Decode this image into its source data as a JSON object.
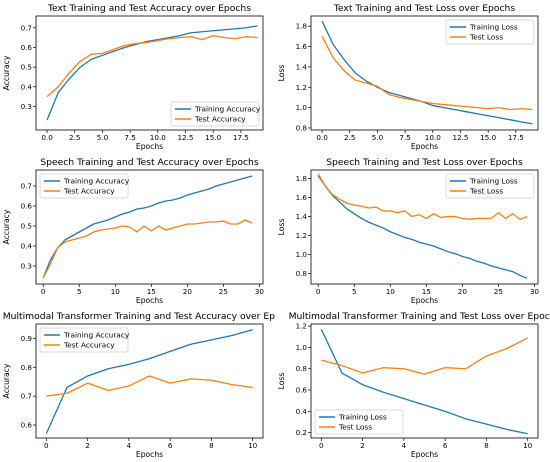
{
  "colors": {
    "training": "#1f77b4",
    "test": "#ff7f0e"
  },
  "chart_data": [
    {
      "type": "line",
      "title": "Text Training and Test Accuracy over Epochs",
      "xlabel": "Epochs",
      "ylabel": "Accuracy",
      "xlim": [
        -1,
        19.5
      ],
      "ylim": [
        0.18,
        0.76
      ],
      "xticks": [
        0.0,
        2.5,
        5.0,
        7.5,
        10.0,
        12.5,
        15.0,
        17.5
      ],
      "xtick_labels": [
        "0.0",
        "2.5",
        "5.0",
        "7.5",
        "10.0",
        "12.5",
        "15.0",
        "17.5"
      ],
      "yticks": [
        0.3,
        0.4,
        0.5,
        0.6,
        0.7
      ],
      "ytick_labels": [
        "0.3",
        "0.4",
        "0.5",
        "0.6",
        "0.7"
      ],
      "legend_loc": "lower-right",
      "x": [
        0,
        1,
        2,
        3,
        4,
        5,
        6,
        7,
        8,
        9,
        10,
        11,
        12,
        13,
        14,
        15,
        16,
        17,
        18,
        19
      ],
      "series": [
        {
          "name": "Training Accuracy",
          "color_key": "training",
          "values": [
            0.23,
            0.37,
            0.44,
            0.5,
            0.54,
            0.56,
            0.58,
            0.6,
            0.615,
            0.63,
            0.64,
            0.65,
            0.66,
            0.675,
            0.68,
            0.685,
            0.69,
            0.695,
            0.7,
            0.71
          ]
        },
        {
          "name": "Test Accuracy",
          "color_key": "test",
          "values": [
            0.35,
            0.4,
            0.47,
            0.53,
            0.565,
            0.57,
            0.59,
            0.61,
            0.62,
            0.625,
            0.635,
            0.645,
            0.65,
            0.655,
            0.64,
            0.66,
            0.65,
            0.645,
            0.655,
            0.65
          ]
        }
      ]
    },
    {
      "type": "line",
      "title": "Text Training and Test Loss over Epochs",
      "xlabel": "Epochs",
      "ylabel": "Loss",
      "xlim": [
        -1,
        19.5
      ],
      "ylim": [
        0.78,
        1.9
      ],
      "xticks": [
        0.0,
        2.5,
        5.0,
        7.5,
        10.0,
        12.5,
        15.0,
        17.5
      ],
      "xtick_labels": [
        "0.0",
        "2.5",
        "5.0",
        "7.5",
        "10.0",
        "12.5",
        "15.0",
        "17.5"
      ],
      "yticks": [
        0.8,
        1.0,
        1.2,
        1.4,
        1.6,
        1.8
      ],
      "ytick_labels": [
        "0.8",
        "1.0",
        "1.2",
        "1.4",
        "1.6",
        "1.8"
      ],
      "legend_loc": "upper-right",
      "x": [
        0,
        1,
        2,
        3,
        4,
        5,
        6,
        7,
        8,
        9,
        10,
        11,
        12,
        13,
        14,
        15,
        16,
        17,
        18,
        19
      ],
      "series": [
        {
          "name": "Training Loss",
          "color_key": "training",
          "values": [
            1.85,
            1.62,
            1.47,
            1.34,
            1.26,
            1.2,
            1.15,
            1.12,
            1.09,
            1.06,
            1.02,
            1.0,
            0.98,
            0.96,
            0.94,
            0.92,
            0.9,
            0.88,
            0.86,
            0.84
          ]
        },
        {
          "name": "Test Loss",
          "color_key": "test",
          "values": [
            1.7,
            1.49,
            1.36,
            1.27,
            1.24,
            1.21,
            1.13,
            1.1,
            1.08,
            1.06,
            1.04,
            1.03,
            1.02,
            1.01,
            1.0,
            0.99,
            1.0,
            0.98,
            0.99,
            0.98
          ]
        }
      ]
    },
    {
      "type": "line",
      "title": "Speech Training and Test Accuracy over Epochs",
      "xlabel": "Epochs",
      "ylabel": "Accuracy",
      "xlim": [
        -1,
        30.5
      ],
      "ylim": [
        0.21,
        0.78
      ],
      "xticks": [
        0,
        5,
        10,
        15,
        20,
        25,
        30
      ],
      "xtick_labels": [
        "0",
        "5",
        "10",
        "15",
        "20",
        "25",
        "30"
      ],
      "yticks": [
        0.3,
        0.4,
        0.5,
        0.6,
        0.7
      ],
      "ytick_labels": [
        "0.3",
        "0.4",
        "0.5",
        "0.6",
        "0.7"
      ],
      "legend_loc": "upper-left",
      "x": [
        0,
        1,
        2,
        3,
        4,
        5,
        6,
        7,
        8,
        9,
        10,
        11,
        12,
        13,
        14,
        15,
        16,
        17,
        18,
        19,
        20,
        21,
        22,
        23,
        24,
        25,
        26,
        27,
        28,
        29
      ],
      "series": [
        {
          "name": "Training Accuracy",
          "color_key": "training",
          "values": [
            0.24,
            0.33,
            0.39,
            0.43,
            0.45,
            0.47,
            0.49,
            0.51,
            0.52,
            0.53,
            0.545,
            0.56,
            0.57,
            0.585,
            0.59,
            0.6,
            0.615,
            0.625,
            0.63,
            0.64,
            0.655,
            0.665,
            0.675,
            0.685,
            0.7,
            0.71,
            0.72,
            0.73,
            0.74,
            0.75
          ]
        },
        {
          "name": "Test Accuracy",
          "color_key": "test",
          "values": [
            0.24,
            0.31,
            0.39,
            0.42,
            0.43,
            0.44,
            0.45,
            0.47,
            0.48,
            0.485,
            0.49,
            0.5,
            0.495,
            0.47,
            0.5,
            0.475,
            0.5,
            0.48,
            0.49,
            0.5,
            0.51,
            0.51,
            0.515,
            0.52,
            0.52,
            0.525,
            0.51,
            0.51,
            0.53,
            0.515
          ]
        }
      ]
    },
    {
      "type": "line",
      "title": "Speech Training and Test Loss over Epochs",
      "xlabel": "Epochs",
      "ylabel": "Loss",
      "xlim": [
        -1,
        30.5
      ],
      "ylim": [
        0.69,
        1.89
      ],
      "xticks": [
        0,
        5,
        10,
        15,
        20,
        25,
        30
      ],
      "xtick_labels": [
        "0",
        "5",
        "10",
        "15",
        "20",
        "25",
        "30"
      ],
      "yticks": [
        0.8,
        1.0,
        1.2,
        1.4,
        1.6,
        1.8
      ],
      "ytick_labels": [
        "0.8",
        "1.0",
        "1.2",
        "1.4",
        "1.6",
        "1.8"
      ],
      "legend_loc": "upper-right",
      "x": [
        0,
        1,
        2,
        3,
        4,
        5,
        6,
        7,
        8,
        9,
        10,
        11,
        12,
        13,
        14,
        15,
        16,
        17,
        18,
        19,
        20,
        21,
        22,
        23,
        24,
        25,
        26,
        27,
        28,
        29
      ],
      "series": [
        {
          "name": "Training Loss",
          "color_key": "training",
          "values": [
            1.83,
            1.72,
            1.62,
            1.55,
            1.48,
            1.43,
            1.38,
            1.34,
            1.31,
            1.28,
            1.24,
            1.21,
            1.18,
            1.16,
            1.13,
            1.11,
            1.09,
            1.06,
            1.03,
            1.01,
            0.98,
            0.96,
            0.93,
            0.91,
            0.88,
            0.86,
            0.84,
            0.82,
            0.78,
            0.75
          ]
        },
        {
          "name": "Test Loss",
          "color_key": "test",
          "values": [
            1.85,
            1.72,
            1.63,
            1.58,
            1.54,
            1.52,
            1.51,
            1.49,
            1.5,
            1.46,
            1.46,
            1.44,
            1.46,
            1.4,
            1.42,
            1.38,
            1.43,
            1.39,
            1.4,
            1.4,
            1.38,
            1.37,
            1.38,
            1.38,
            1.38,
            1.44,
            1.38,
            1.43,
            1.37,
            1.4
          ]
        }
      ]
    },
    {
      "type": "line",
      "title": "Multimodal Transformer Training and Test Accuracy over Epochs",
      "xlabel": "Epochs",
      "ylabel": "Accuracy",
      "xlim": [
        -0.5,
        10.5
      ],
      "ylim": [
        0.555,
        0.95
      ],
      "xticks": [
        0,
        2,
        4,
        6,
        8,
        10
      ],
      "xtick_labels": [
        "0",
        "2",
        "4",
        "6",
        "8",
        "10"
      ],
      "yticks": [
        0.6,
        0.7,
        0.8,
        0.9
      ],
      "ytick_labels": [
        "0.6",
        "0.7",
        "0.8",
        "0.9"
      ],
      "legend_loc": "upper-left",
      "x": [
        0,
        1,
        2,
        3,
        4,
        5,
        6,
        7,
        8,
        9,
        10
      ],
      "series": [
        {
          "name": "Training Accuracy",
          "color_key": "training",
          "values": [
            0.57,
            0.73,
            0.77,
            0.795,
            0.81,
            0.83,
            0.855,
            0.88,
            0.895,
            0.91,
            0.93
          ]
        },
        {
          "name": "Test Accuracy",
          "color_key": "test",
          "values": [
            0.7,
            0.71,
            0.745,
            0.72,
            0.735,
            0.77,
            0.745,
            0.76,
            0.755,
            0.74,
            0.73
          ]
        }
      ]
    },
    {
      "type": "line",
      "title": "Multimodal Transformer Training and Test Loss over Epochs",
      "xlabel": "Epochs",
      "ylabel": "Loss",
      "xlim": [
        -0.5,
        10.5
      ],
      "ylim": [
        0.15,
        1.22
      ],
      "xticks": [
        0,
        2,
        4,
        6,
        8,
        10
      ],
      "xtick_labels": [
        "0",
        "2",
        "4",
        "6",
        "8",
        "10"
      ],
      "yticks": [
        0.2,
        0.4,
        0.6,
        0.8,
        1.0,
        1.2
      ],
      "ytick_labels": [
        "0.2",
        "0.4",
        "0.6",
        "0.8",
        "1.0",
        "1.2"
      ],
      "legend_loc": "lower-left",
      "x": [
        0,
        1,
        2,
        3,
        4,
        5,
        6,
        7,
        8,
        9,
        10
      ],
      "series": [
        {
          "name": "Training Loss",
          "color_key": "training",
          "values": [
            1.17,
            0.76,
            0.65,
            0.58,
            0.52,
            0.46,
            0.4,
            0.33,
            0.28,
            0.23,
            0.19
          ]
        },
        {
          "name": "Test Loss",
          "color_key": "test",
          "values": [
            0.88,
            0.83,
            0.76,
            0.81,
            0.8,
            0.75,
            0.81,
            0.8,
            0.92,
            0.99,
            1.09
          ]
        }
      ]
    }
  ]
}
